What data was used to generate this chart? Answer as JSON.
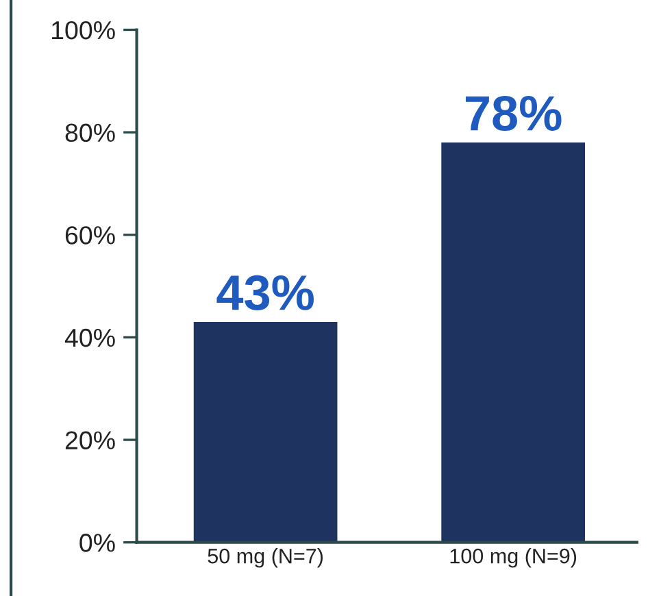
{
  "chart_data": {
    "type": "bar",
    "categories": [
      "50 mg (N=7)",
      "100 mg (N=9)"
    ],
    "values": [
      43,
      78
    ],
    "color": "#1e3360",
    "value_labels": [
      "43%",
      "78%"
    ],
    "ylim": [
      0,
      100
    ],
    "yticks": [
      {
        "value": 0,
        "label": "0%"
      },
      {
        "value": 20,
        "label": "20%"
      },
      {
        "value": 40,
        "label": "40%"
      },
      {
        "value": 60,
        "label": "60%"
      },
      {
        "value": 80,
        "label": "80%"
      },
      {
        "value": 100,
        "label": "100%"
      }
    ],
    "grid": false,
    "legend": false
  }
}
